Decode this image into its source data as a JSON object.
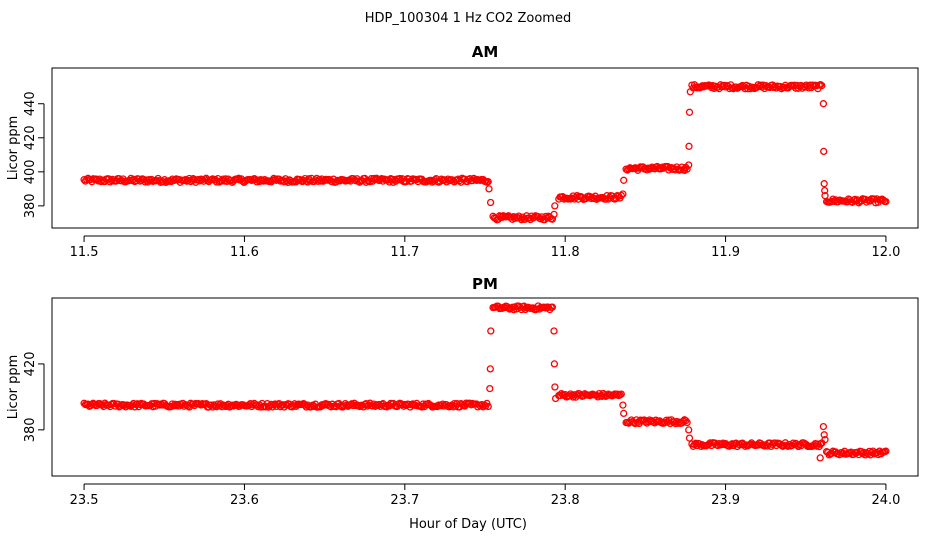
{
  "figure": {
    "title": "HDP_100304  1 Hz CO2 Zoomed",
    "xlabel": "Hour of Day (UTC)"
  },
  "colors": {
    "points": "#ff0000",
    "axes": "#000000",
    "background": "#ffffff"
  },
  "chart_data": [
    {
      "type": "scatter",
      "title": "AM",
      "xlabel": "",
      "ylabel": "Licor ppm",
      "xlim": [
        11.48,
        12.02
      ],
      "ylim": [
        367,
        461
      ],
      "xticks": [
        "11.5",
        "11.6",
        "11.7",
        "11.8",
        "11.9",
        "12.0"
      ],
      "yticks": [
        "380",
        "400",
        "420",
        "440"
      ],
      "grid": false,
      "legend": "none",
      "segments": [
        {
          "x_start": 11.5,
          "x_end": 11.752,
          "y": 395
        },
        {
          "x_start": 11.755,
          "x_end": 11.792,
          "y": 373
        },
        {
          "x_start": 11.796,
          "x_end": 11.835,
          "y": 385
        },
        {
          "x_start": 11.838,
          "x_end": 11.876,
          "y": 402
        },
        {
          "x_start": 11.879,
          "x_end": 11.96,
          "y": 450
        },
        {
          "x_start": 11.963,
          "x_end": 12.0,
          "y": 383
        }
      ],
      "transitions": [
        {
          "x": 11.7525,
          "y": 390
        },
        {
          "x": 11.7535,
          "y": 382
        },
        {
          "x": 11.793,
          "y": 375
        },
        {
          "x": 11.7935,
          "y": 380
        },
        {
          "x": 11.836,
          "y": 387
        },
        {
          "x": 11.8365,
          "y": 395
        },
        {
          "x": 11.877,
          "y": 404
        },
        {
          "x": 11.8772,
          "y": 415
        },
        {
          "x": 11.8775,
          "y": 435
        },
        {
          "x": 11.878,
          "y": 447
        },
        {
          "x": 11.961,
          "y": 440
        },
        {
          "x": 11.9612,
          "y": 412
        },
        {
          "x": 11.9615,
          "y": 393
        },
        {
          "x": 11.9618,
          "y": 389
        },
        {
          "x": 11.962,
          "y": 386
        }
      ]
    },
    {
      "type": "scatter",
      "title": "PM",
      "xlabel": "",
      "ylabel": "Licor ppm",
      "xlim": [
        23.48,
        24.02
      ],
      "ylim": [
        352,
        460
      ],
      "xticks": [
        "23.5",
        "23.6",
        "23.7",
        "23.8",
        "23.9",
        "24.0"
      ],
      "yticks": [
        "380",
        "420"
      ],
      "grid": false,
      "legend": "none",
      "segments": [
        {
          "x_start": 23.5,
          "x_end": 23.752,
          "y": 395
        },
        {
          "x_start": 23.755,
          "x_end": 23.792,
          "y": 454
        },
        {
          "x_start": 23.796,
          "x_end": 23.835,
          "y": 401
        },
        {
          "x_start": 23.838,
          "x_end": 23.876,
          "y": 385
        },
        {
          "x_start": 23.879,
          "x_end": 23.96,
          "y": 371
        },
        {
          "x_start": 23.963,
          "x_end": 24.0,
          "y": 366
        }
      ],
      "transitions": [
        {
          "x": 23.753,
          "y": 405
        },
        {
          "x": 23.7533,
          "y": 417
        },
        {
          "x": 23.7536,
          "y": 440
        },
        {
          "x": 23.793,
          "y": 440
        },
        {
          "x": 23.7933,
          "y": 420
        },
        {
          "x": 23.7936,
          "y": 406
        },
        {
          "x": 23.794,
          "y": 399
        },
        {
          "x": 23.836,
          "y": 395
        },
        {
          "x": 23.8365,
          "y": 390
        },
        {
          "x": 23.877,
          "y": 380
        },
        {
          "x": 23.8775,
          "y": 375
        },
        {
          "x": 23.959,
          "y": 363
        },
        {
          "x": 23.961,
          "y": 382
        },
        {
          "x": 23.9615,
          "y": 377
        },
        {
          "x": 23.962,
          "y": 374
        }
      ]
    }
  ]
}
